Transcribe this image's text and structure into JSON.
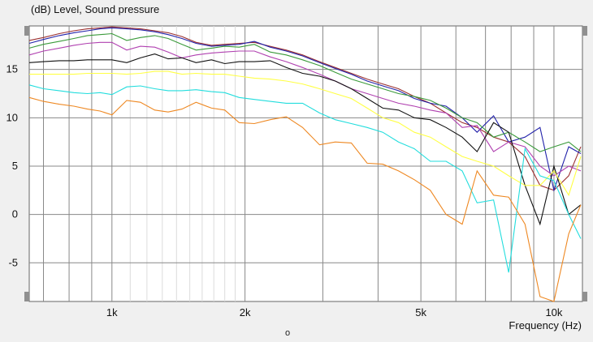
{
  "chart_data": {
    "type": "line",
    "title": "(dB)  Level, Sound pressure",
    "xlabel": "Frequency  (Hz)",
    "ylabel": "(dB)",
    "x_scale": "log",
    "xlim": [
      650,
      11600
    ],
    "ylim": [
      -9,
      19.5
    ],
    "grid": true,
    "y_ticks": [
      15,
      10,
      5,
      0,
      -5
    ],
    "x_tick_labels": [
      {
        "value": 1000,
        "label": "1k"
      },
      {
        "value": 2000,
        "label": "2k"
      },
      {
        "value": 5000,
        "label": "5k"
      },
      {
        "value": 10000,
        "label": "10k"
      }
    ],
    "x_grid": [
      700,
      800,
      900,
      1000,
      2000,
      3000,
      4000,
      5000,
      6000,
      7000,
      8000,
      9000,
      10000
    ],
    "x_minor_grid": [
      1100,
      1200,
      1300,
      1400,
      1500,
      1600,
      1700,
      1800,
      1900
    ],
    "x": [
      650,
      700,
      760,
      820,
      880,
      940,
      1000,
      1080,
      1160,
      1250,
      1340,
      1440,
      1550,
      1680,
      1800,
      1940,
      2100,
      2280,
      2480,
      2700,
      2950,
      3200,
      3480,
      3780,
      4100,
      4450,
      4830,
      5250,
      5700,
      6200,
      6700,
      7300,
      7900,
      8600,
      9300,
      10000,
      10800,
      11500
    ],
    "series": [
      {
        "color": "#9b3030",
        "values": [
          18.0,
          18.3,
          18.7,
          19.0,
          19.2,
          19.3,
          19.4,
          19.3,
          19.2,
          19.0,
          18.8,
          18.4,
          17.8,
          17.5,
          17.6,
          17.7,
          17.8,
          17.4,
          17.0,
          16.5,
          15.8,
          15.2,
          14.6,
          14.0,
          13.5,
          13.0,
          12.2,
          11.5,
          10.5,
          9.5,
          9.0,
          8.0,
          7.5,
          6.0,
          3.0,
          2.5,
          4.0,
          7.0
        ]
      },
      {
        "color": "#2222aa",
        "values": [
          17.7,
          18.1,
          18.5,
          18.8,
          19.0,
          19.2,
          19.3,
          19.2,
          19.1,
          18.9,
          18.6,
          18.2,
          17.7,
          17.4,
          17.5,
          17.6,
          17.9,
          17.3,
          16.9,
          16.4,
          15.7,
          15.1,
          14.5,
          13.8,
          13.3,
          12.8,
          12.0,
          11.5,
          11.2,
          10.0,
          8.5,
          10.2,
          7.5,
          8.0,
          9.0,
          2.5,
          7.0,
          6.3
        ]
      },
      {
        "color": "#3a9a3a",
        "values": [
          17.2,
          17.6,
          17.9,
          18.2,
          18.5,
          18.6,
          18.7,
          18.0,
          18.3,
          18.5,
          18.2,
          17.6,
          17.0,
          17.2,
          17.4,
          17.3,
          17.6,
          16.8,
          16.5,
          16.0,
          15.4,
          14.7,
          14.0,
          13.5,
          13.0,
          12.5,
          12.2,
          11.8,
          11.0,
          10.0,
          9.5,
          8.0,
          8.5,
          7.5,
          6.5,
          7.0,
          7.5,
          6.5
        ]
      },
      {
        "color": "#b040b0",
        "values": [
          16.5,
          16.9,
          17.2,
          17.5,
          17.7,
          17.8,
          17.8,
          17.0,
          17.4,
          17.3,
          16.8,
          16.2,
          16.5,
          16.7,
          16.8,
          16.9,
          16.9,
          16.3,
          15.8,
          15.2,
          14.5,
          13.8,
          13.0,
          12.5,
          12.0,
          11.5,
          11.2,
          10.8,
          10.5,
          9.0,
          9.2,
          6.5,
          7.5,
          7.0,
          5.0,
          4.0,
          5.0,
          4.5
        ]
      },
      {
        "color": "#111111",
        "values": [
          15.7,
          15.8,
          15.9,
          15.9,
          16.0,
          16.0,
          16.0,
          15.7,
          16.2,
          16.6,
          16.1,
          16.2,
          15.7,
          16.0,
          15.6,
          15.8,
          15.8,
          15.9,
          15.2,
          14.6,
          14.3,
          13.8,
          13.0,
          12.0,
          11.0,
          10.8,
          10.0,
          9.8,
          9.0,
          8.0,
          6.5,
          9.5,
          8.5,
          3.0,
          -1.0,
          5.0,
          0.0,
          1.0
        ]
      },
      {
        "color": "#ffff44",
        "values": [
          14.5,
          14.5,
          14.5,
          14.5,
          14.6,
          14.6,
          14.6,
          14.5,
          14.6,
          14.8,
          14.8,
          14.5,
          14.6,
          14.5,
          14.5,
          14.3,
          14.1,
          14.0,
          13.8,
          13.5,
          13.0,
          12.5,
          12.0,
          11.0,
          10.0,
          9.5,
          8.5,
          8.0,
          7.0,
          6.0,
          5.5,
          5.0,
          4.0,
          3.0,
          3.0,
          4.5,
          2.0,
          6.0
        ]
      },
      {
        "color": "#22dddd",
        "values": [
          13.4,
          13.0,
          12.8,
          12.6,
          12.5,
          12.6,
          12.4,
          13.2,
          13.3,
          13.0,
          12.8,
          12.8,
          12.9,
          12.7,
          12.6,
          12.1,
          11.9,
          11.7,
          11.5,
          11.5,
          10.5,
          9.8,
          9.4,
          9.0,
          8.5,
          7.5,
          6.8,
          5.5,
          5.5,
          4.5,
          1.2,
          1.5,
          -6.0,
          6.8,
          4.0,
          3.5,
          0.0,
          -2.5
        ]
      },
      {
        "color": "#ee8822",
        "values": [
          12.1,
          11.7,
          11.4,
          11.2,
          10.9,
          10.7,
          10.3,
          11.8,
          11.6,
          10.8,
          10.6,
          10.9,
          11.6,
          11.0,
          10.8,
          9.5,
          9.4,
          9.8,
          10.1,
          9.0,
          7.2,
          7.5,
          7.4,
          5.3,
          5.2,
          4.5,
          3.6,
          2.5,
          0.0,
          -1.0,
          4.5,
          2.0,
          1.8,
          -1.0,
          -8.5,
          -9.5,
          -2.0,
          1.0
        ]
      }
    ],
    "footer_marker": "o"
  }
}
